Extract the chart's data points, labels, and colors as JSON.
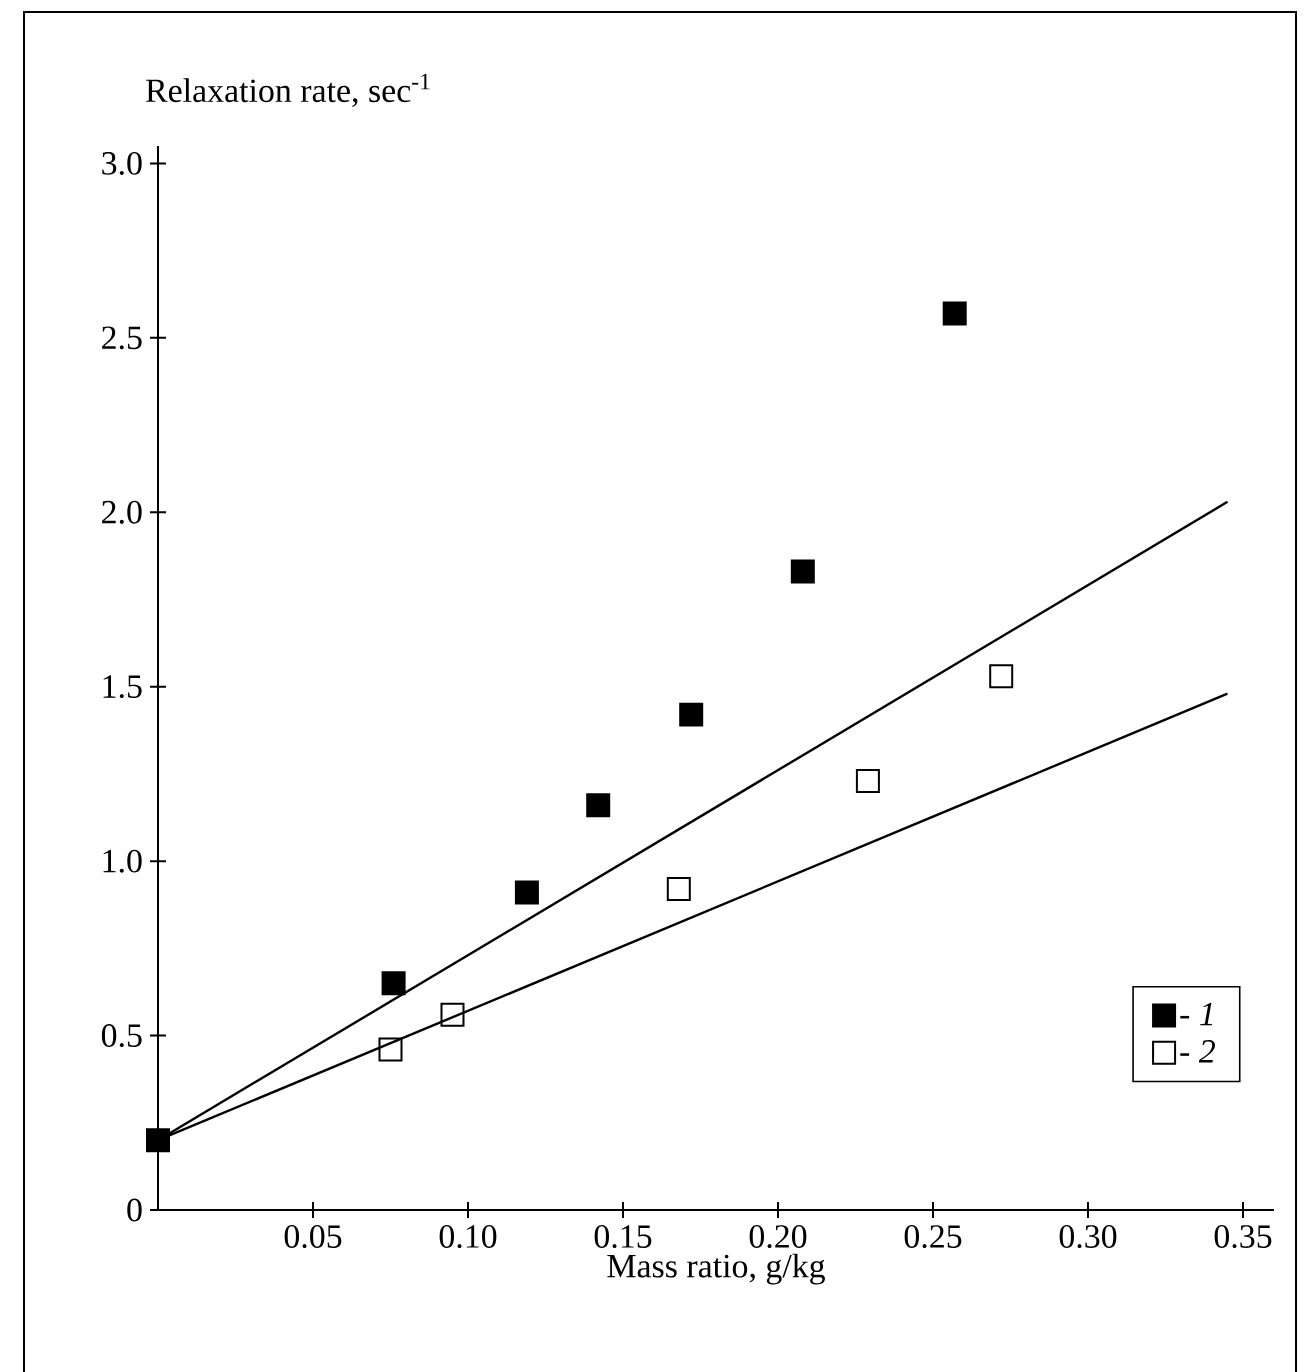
{
  "chart_data": {
    "type": "scatter",
    "xlabel": "Mass ratio, g/kg",
    "ylabel": "Relaxation rate, sec$^{-1}$",
    "xlim": [
      0,
      0.36
    ],
    "ylim": [
      0,
      3.05
    ],
    "xticks": [
      0.05,
      {
        "value": 0.1,
        "label": "0.10"
      },
      0.15,
      {
        "value": 0.2,
        "label": "0.20"
      },
      0.25,
      {
        "value": 0.3,
        "label": "0.30"
      },
      0.35
    ],
    "yticks": [
      0,
      0.5,
      {
        "value": 1,
        "label": "1.0"
      },
      1.5,
      {
        "value": 2,
        "label": "2.0"
      },
      2.5,
      {
        "value": 3,
        "label": "3.0"
      }
    ],
    "legend": "bottom right",
    "grid": false,
    "series": [
      {
        "name": "- *1*",
        "color": "#000000",
        "marker": "square",
        "x": [
          0,
          0.076,
          0.119,
          0.142,
          0.172,
          0.208,
          0.257
        ],
        "values": [
          0.2,
          0.65,
          0.91,
          1.16,
          1.42,
          1.83,
          2.57
        ]
      },
      {
        "name": "- *2*",
        "color": "#000000",
        "marker": "square",
        "x": [
          0.075,
          0.095,
          0.168,
          0.229,
          0.272
        ],
        "values": [
          0.46,
          0.56,
          0.92,
          1.23,
          1.53
        ]
      },
      {
        "type": "line",
        "color": "#000000",
        "marker": "none",
        "x": [
          0,
          0.345
        ],
        "values": [
          0.2,
          2.03
        ]
      },
      {
        "type": "line",
        "color": "#000000",
        "marker": "none",
        "x": [
          0,
          0.345
        ],
        "values": [
          0.2,
          1.48
        ]
      }
    ]
  }
}
